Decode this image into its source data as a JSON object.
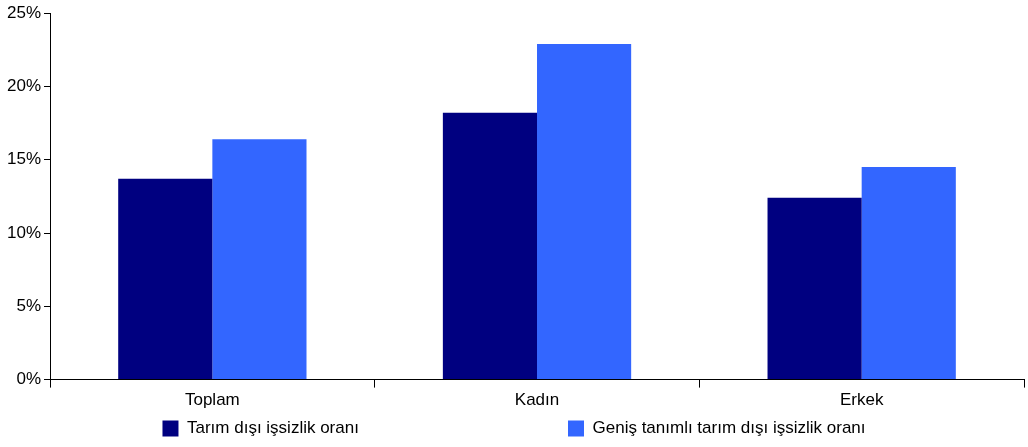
{
  "chart_data": {
    "type": "bar",
    "categories": [
      "Toplam",
      "Kadın",
      "Erkek"
    ],
    "series": [
      {
        "name": "Tarım dışı işsizlik oranı",
        "color": "#000080",
        "values": [
          13.7,
          18.2,
          12.4
        ]
      },
      {
        "name": "Geniş tanımlı tarım dışı işsizlik oranı",
        "color": "#3366ff",
        "values": [
          16.4,
          22.9,
          14.5
        ]
      }
    ],
    "ylim": [
      0,
      25
    ],
    "yticks": [
      {
        "value": 0,
        "label": "0%"
      },
      {
        "value": 5,
        "label": "5%"
      },
      {
        "value": 10,
        "label": "10%"
      },
      {
        "value": 15,
        "label": "15%"
      },
      {
        "value": 20,
        "label": "20%"
      },
      {
        "value": 25,
        "label": "25%"
      }
    ],
    "grid": false,
    "legend": "bottom"
  }
}
